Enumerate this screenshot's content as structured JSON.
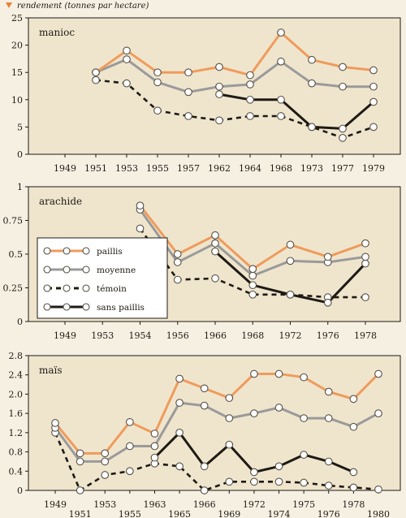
{
  "y_title": "rendement (tonnes par hectare)",
  "colors": {
    "background": "#f6f0e3",
    "panel_bg": "#efe5cd",
    "axis": "#1e1a14",
    "title_marker": "#e8833a",
    "paillis": "#ef9b5c",
    "moyenne": "#9a9a9a",
    "temoin": "#1e1a14",
    "sans_paillis": "#1e1a14"
  },
  "legend": {
    "items": [
      {
        "label": "paillis",
        "color": "#ef9b5c",
        "dashed": false
      },
      {
        "label": "moyenne",
        "color": "#9a9a9a",
        "dashed": false
      },
      {
        "label": "témoin",
        "color": "#1e1a14",
        "dashed": true
      },
      {
        "label": "sans paillis",
        "color": "#1e1a14",
        "dashed": false
      }
    ]
  },
  "chart_data": [
    {
      "type": "line",
      "label": "manioc",
      "ylim": [
        0,
        25
      ],
      "yticks": [
        "0",
        "5",
        "10",
        "15",
        "20",
        "25"
      ],
      "categories": [
        "1949",
        "1951",
        "1953",
        "1955",
        "1957",
        "1962",
        "1964",
        "1968",
        "1973",
        "1977",
        "1979"
      ],
      "series": [
        {
          "name": "paillis",
          "values": [
            null,
            15,
            19,
            15,
            15,
            16,
            14.5,
            22.3,
            17.3,
            16,
            15.4
          ]
        },
        {
          "name": "moyenne",
          "values": [
            null,
            15,
            17.4,
            13.2,
            11.4,
            12.4,
            12.8,
            17,
            13,
            12.4,
            12.4
          ]
        },
        {
          "name": "témoin",
          "values": [
            null,
            13.6,
            13,
            8,
            7,
            6.2,
            7,
            7,
            5,
            3,
            5
          ]
        },
        {
          "name": "sans paillis",
          "values": [
            null,
            null,
            null,
            null,
            null,
            11,
            10,
            10,
            5,
            4.7,
            9.6
          ]
        }
      ]
    },
    {
      "type": "line",
      "label": "arachide",
      "ylim": [
        0,
        1
      ],
      "yticks": [
        "0",
        "0.25",
        "0.5",
        "0.75",
        "1"
      ],
      "categories": [
        "1949",
        "1953",
        "1954",
        "1956",
        "1966",
        "1968",
        "1972",
        "1976",
        "1978"
      ],
      "series": [
        {
          "name": "paillis",
          "values": [
            null,
            null,
            0.86,
            0.5,
            0.64,
            0.39,
            0.57,
            0.48,
            0.58
          ]
        },
        {
          "name": "moyenne",
          "values": [
            null,
            null,
            0.83,
            0.44,
            0.58,
            0.34,
            0.45,
            0.44,
            0.48
          ]
        },
        {
          "name": "témoin",
          "values": [
            null,
            null,
            0.69,
            0.31,
            0.32,
            0.2,
            0.2,
            0.18,
            0.18
          ]
        },
        {
          "name": "sans paillis",
          "values": [
            null,
            null,
            null,
            null,
            0.52,
            0.27,
            0.2,
            0.14,
            0.43
          ]
        }
      ]
    },
    {
      "type": "line",
      "label": "maïs",
      "ylim": [
        0,
        2.8
      ],
      "yticks": [
        "0",
        "0.4",
        "0.8",
        "1.2",
        "1.6",
        "2.0",
        "2.4",
        "2.8"
      ],
      "categories": [
        "1949",
        "1951",
        "1953",
        "1955",
        "1963",
        "1965",
        "1966",
        "1969",
        "1972",
        "1974",
        "1975",
        "1976",
        "1978",
        "1980"
      ],
      "series": [
        {
          "name": "paillis",
          "values": [
            1.4,
            0.77,
            0.77,
            1.42,
            1.18,
            2.32,
            2.12,
            1.92,
            2.42,
            2.42,
            2.35,
            2.05,
            1.9,
            2.42
          ]
        },
        {
          "name": "moyenne",
          "values": [
            1.3,
            0.6,
            0.6,
            0.92,
            0.92,
            1.82,
            1.76,
            1.5,
            1.6,
            1.72,
            1.5,
            1.5,
            1.32,
            1.6
          ]
        },
        {
          "name": "témoin",
          "values": [
            1.2,
            0,
            0.32,
            0.4,
            0.56,
            0.5,
            0,
            0.18,
            0.18,
            0.18,
            0.16,
            0.1,
            0.06,
            0.02
          ]
        },
        {
          "name": "sans paillis",
          "values": [
            null,
            null,
            null,
            null,
            0.68,
            1.2,
            0.5,
            0.95,
            0.38,
            0.5,
            0.74,
            0.6,
            0.38,
            null
          ]
        }
      ]
    }
  ]
}
